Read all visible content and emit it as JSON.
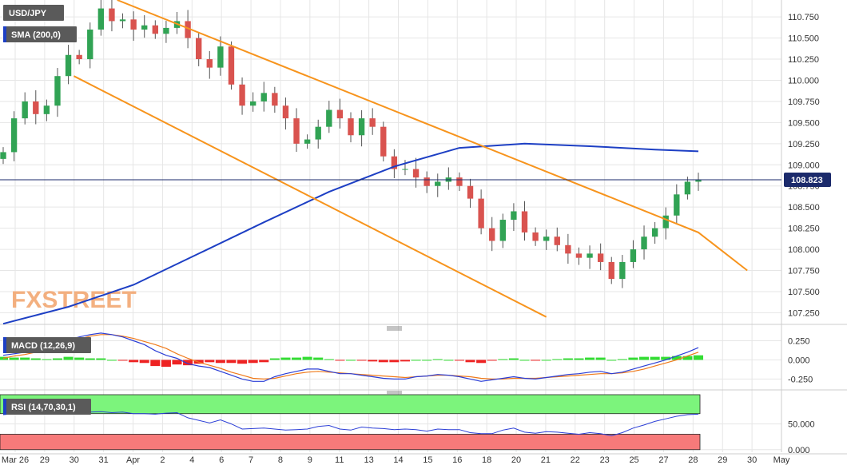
{
  "chart_data": [
    {
      "panel": "price",
      "type": "candlestick",
      "symbol_label": "USD/JPY",
      "indicator_label": "SMA (200,0)",
      "last_price_label": "108.823",
      "last_price": 108.823,
      "ylim": [
        107.15,
        110.95
      ],
      "y_ticks": [
        107.25,
        107.5,
        107.75,
        108.0,
        108.25,
        108.5,
        108.75,
        109.0,
        109.25,
        109.5,
        109.75,
        110.0,
        110.25,
        110.5,
        110.75
      ],
      "y_tick_labels": [
        "107.250",
        "107.500",
        "107.750",
        "108.000",
        "108.250",
        "108.500",
        "108.750",
        "109.000",
        "109.250",
        "109.500",
        "109.750",
        "110.000",
        "110.250",
        "110.500",
        "110.750"
      ],
      "x_labels": [
        "Mar 26",
        "29",
        "30",
        "31",
        "Apr",
        "2",
        "4",
        "6",
        "7",
        "8",
        "9",
        "11",
        "13",
        "14",
        "15",
        "16",
        "18",
        "20",
        "21",
        "22",
        "23",
        "25",
        "27",
        "28",
        "29",
        "30",
        "May"
      ],
      "grid": true,
      "watermark": "FXSTREET",
      "close_series": [
        109.15,
        109.55,
        109.75,
        109.6,
        109.7,
        110.05,
        110.3,
        110.25,
        110.6,
        110.85,
        110.7,
        110.72,
        110.6,
        110.65,
        110.55,
        110.62,
        110.7,
        110.5,
        110.25,
        110.15,
        110.4,
        109.95,
        109.7,
        109.75,
        109.85,
        109.7,
        109.55,
        109.25,
        109.3,
        109.45,
        109.65,
        109.55,
        109.35,
        109.55,
        109.45,
        109.1,
        108.95,
        108.95,
        108.85,
        108.75,
        108.8,
        108.85,
        108.75,
        108.6,
        108.25,
        108.1,
        108.35,
        108.45,
        108.2,
        108.1,
        108.15,
        108.05,
        107.95,
        107.9,
        107.95,
        107.85,
        107.65,
        107.85,
        108.0,
        108.15,
        108.25,
        108.4,
        108.65,
        108.8,
        108.823
      ],
      "sma_200": {
        "x_index": [
          0,
          6,
          12,
          18,
          24,
          30,
          36,
          42,
          48,
          54,
          60,
          64
        ],
        "values": [
          107.12,
          107.32,
          107.58,
          107.95,
          108.32,
          108.68,
          108.98,
          109.2,
          109.25,
          109.22,
          109.18,
          109.16
        ]
      },
      "trend_lines": [
        {
          "points": [
            [
              10.5,
              110.95
            ],
            [
              64,
              108.2
            ],
            [
              68.5,
              107.75
            ]
          ]
        },
        {
          "points": [
            [
              6.5,
              110.05
            ],
            [
              50,
              107.2
            ]
          ]
        }
      ]
    },
    {
      "panel": "macd",
      "type": "line+histogram",
      "label": "MACD (12,26,9)",
      "ylim": [
        -0.35,
        0.38
      ],
      "y_ticks": [
        -0.25,
        0.0,
        0.25
      ],
      "y_tick_labels": [
        "-0.250",
        "0.000",
        "0.250"
      ],
      "macd": [
        0.06,
        0.08,
        0.1,
        0.12,
        0.15,
        0.2,
        0.26,
        0.3,
        0.33,
        0.35,
        0.33,
        0.3,
        0.25,
        0.2,
        0.12,
        0.06,
        0.02,
        -0.05,
        -0.08,
        -0.1,
        -0.15,
        -0.2,
        -0.25,
        -0.28,
        -0.28,
        -0.22,
        -0.18,
        -0.15,
        -0.12,
        -0.12,
        -0.15,
        -0.18,
        -0.18,
        -0.2,
        -0.22,
        -0.24,
        -0.25,
        -0.25,
        -0.22,
        -0.21,
        -0.19,
        -0.2,
        -0.22,
        -0.25,
        -0.28,
        -0.26,
        -0.24,
        -0.22,
        -0.24,
        -0.25,
        -0.23,
        -0.21,
        -0.19,
        -0.18,
        -0.16,
        -0.15,
        -0.18,
        -0.16,
        -0.12,
        -0.08,
        -0.04,
        0.0,
        0.05,
        0.1,
        0.16
      ],
      "signal": [
        0.02,
        0.05,
        0.07,
        0.1,
        0.14,
        0.18,
        0.22,
        0.27,
        0.31,
        0.33,
        0.33,
        0.31,
        0.28,
        0.24,
        0.2,
        0.15,
        0.08,
        0.02,
        -0.03,
        -0.07,
        -0.11,
        -0.16,
        -0.2,
        -0.24,
        -0.25,
        -0.24,
        -0.21,
        -0.18,
        -0.16,
        -0.15,
        -0.16,
        -0.17,
        -0.18,
        -0.19,
        -0.2,
        -0.21,
        -0.22,
        -0.23,
        -0.22,
        -0.21,
        -0.2,
        -0.2,
        -0.21,
        -0.22,
        -0.24,
        -0.25,
        -0.25,
        -0.24,
        -0.24,
        -0.24,
        -0.23,
        -0.22,
        -0.21,
        -0.2,
        -0.19,
        -0.18,
        -0.18,
        -0.17,
        -0.15,
        -0.12,
        -0.08,
        -0.04,
        0.0,
        0.05,
        0.1
      ]
    },
    {
      "panel": "rsi",
      "type": "line",
      "label": "RSI (14,70,30,1)",
      "ylim": [
        -5,
        110
      ],
      "y_ticks": [
        0,
        50
      ],
      "y_tick_labels": [
        "0.000",
        "50.000"
      ],
      "overbought": 70,
      "oversold": 30,
      "values": [
        68,
        70,
        71,
        72,
        73,
        74,
        74,
        72,
        73,
        74,
        72,
        73,
        70,
        70,
        69,
        71,
        72,
        62,
        57,
        52,
        58,
        50,
        40,
        41,
        42,
        40,
        38,
        39,
        40,
        45,
        47,
        40,
        38,
        44,
        42,
        41,
        39,
        40,
        39,
        36,
        40,
        39,
        39,
        33,
        31,
        31,
        38,
        42,
        34,
        32,
        35,
        34,
        32,
        30,
        33,
        31,
        27,
        33,
        42,
        48,
        55,
        60,
        65,
        68,
        69
      ]
    }
  ],
  "colors": {
    "candle_up": "#31a354",
    "candle_down": "#d9534f",
    "sma": "#1d3fc4",
    "trend": "#f7941d",
    "last_price_bg": "#1b2a6b",
    "price_line": "#1b2a6b",
    "macd_line": "#2b3ed6",
    "signal_line": "#f07a1a",
    "hist_pos": "#33dd33",
    "hist_neg": "#ee2222",
    "rsi_line": "#2b3ed6",
    "rsi_high_zone": "#7cf47c",
    "rsi_low_zone": "#f77a7a",
    "grid": "#e6e6e6",
    "tag_bg": "#5a5a5a",
    "tag_accent": "#1d3fc4",
    "watermark": "#f2a36a"
  }
}
